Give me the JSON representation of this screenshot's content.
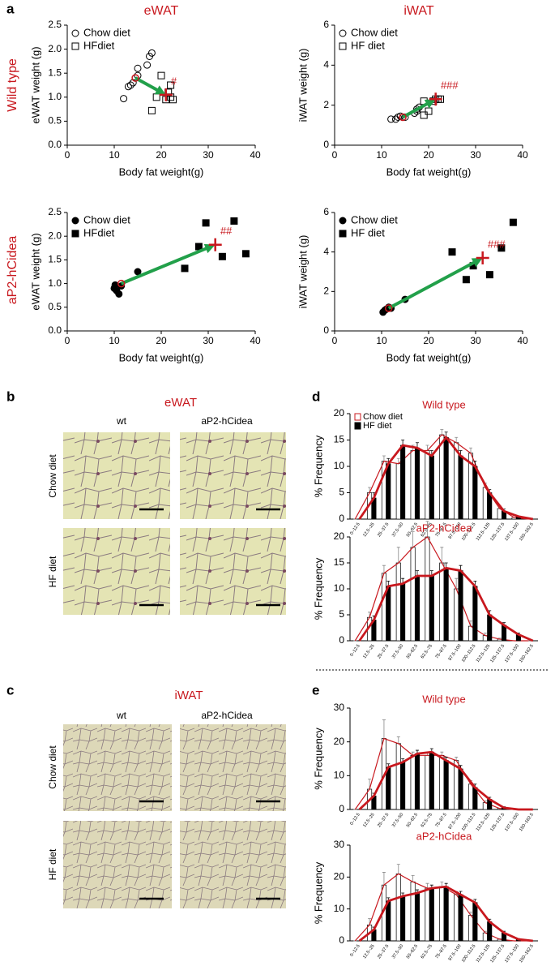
{
  "figure": {
    "panels": [
      "a",
      "b",
      "c",
      "d",
      "e"
    ],
    "row_labels": [
      "Wild type",
      "aP2-hCidea"
    ],
    "b": {
      "title": "eWAT",
      "columns": [
        "wt",
        "aP2-hCidea"
      ],
      "rows": [
        "Chow diet",
        "HF diet"
      ]
    },
    "c": {
      "title": "iWAT",
      "columns": [
        "wt",
        "aP2-hCidea"
      ],
      "rows": [
        "Chow diet",
        "HF diet"
      ]
    }
  },
  "chart_data": [
    {
      "type": "scatter",
      "title": "eWAT",
      "xlabel": "Body fat weight(g)",
      "ylabel": "eWAT weight (g)",
      "xlim": [
        0,
        40
      ],
      "xticks": [
        0,
        10,
        20,
        30,
        40
      ],
      "ylim": [
        0,
        2.5
      ],
      "yticks": [
        {
          "value": 0,
          "label": "0.0"
        },
        {
          "value": 0.5,
          "label": "0.5"
        },
        {
          "value": 1,
          "label": "1.0"
        },
        {
          "value": 1.5,
          "label": "1.5"
        },
        {
          "value": 2,
          "label": "2.0"
        },
        {
          "value": 2.5,
          "label": "2.5"
        }
      ],
      "series": [
        {
          "name": "Chow diet",
          "marker": "circle",
          "filled": false,
          "color": "#000000",
          "x": [
            12,
            13,
            13.5,
            14,
            15,
            15,
            17,
            17.5,
            18
          ],
          "y": [
            0.97,
            1.22,
            1.25,
            1.3,
            1.45,
            1.6,
            1.67,
            1.85,
            1.92
          ]
        },
        {
          "name": "HFdiet",
          "marker": "square",
          "filled": false,
          "color": "#000000",
          "x": [
            18,
            19,
            20,
            21,
            22,
            22,
            22.5,
            21.5
          ],
          "y": [
            0.72,
            1.0,
            1.45,
            0.95,
            1.25,
            1.0,
            0.95,
            1.1
          ]
        }
      ],
      "means": {
        "color": "#c8181e",
        "x": [
          14.5,
          21
        ],
        "y": [
          1.4,
          1.05
        ]
      },
      "arrow_color": "#22a04a",
      "annotation": "#"
    },
    {
      "type": "scatter",
      "title": "iWAT",
      "xlabel": "Body fat weight(g)",
      "ylabel": "iWAT weight (g)",
      "xlim": [
        0,
        40
      ],
      "xticks": [
        0,
        10,
        20,
        30,
        40
      ],
      "ylim": [
        0,
        6
      ],
      "yticks": [
        0,
        2,
        4,
        6
      ],
      "series": [
        {
          "name": "Chow diet",
          "marker": "circle",
          "filled": false,
          "color": "#000000",
          "x": [
            12,
            13,
            13.5,
            14,
            15,
            17,
            17.5,
            18,
            17.5
          ],
          "y": [
            1.3,
            1.3,
            1.4,
            1.45,
            1.4,
            1.6,
            1.8,
            1.9,
            1.7
          ]
        },
        {
          "name": "HF diet",
          "marker": "square",
          "filled": false,
          "color": "#000000",
          "x": [
            19,
            20,
            19,
            21,
            21.5,
            22,
            22.5
          ],
          "y": [
            1.5,
            1.7,
            2.2,
            2.2,
            2.3,
            2.3,
            2.3
          ]
        }
      ],
      "means": {
        "color": "#c8181e",
        "x": [
          14.5,
          21.5
        ],
        "y": [
          1.4,
          2.3
        ]
      },
      "arrow_color": "#22a04a",
      "annotation": "###"
    },
    {
      "type": "scatter",
      "title": null,
      "xlabel": "Body fat weight(g)",
      "ylabel": "eWAT weight (g)",
      "xlim": [
        0,
        40
      ],
      "xticks": [
        0,
        10,
        20,
        30,
        40
      ],
      "ylim": [
        0,
        2.5
      ],
      "yticks": [
        {
          "value": 0,
          "label": "0.0"
        },
        {
          "value": 0.5,
          "label": "0.5"
        },
        {
          "value": 1,
          "label": "1.0"
        },
        {
          "value": 1.5,
          "label": "1.5"
        },
        {
          "value": 2,
          "label": "2.0"
        },
        {
          "value": 2.5,
          "label": "2.5"
        }
      ],
      "series": [
        {
          "name": "Chow diet",
          "marker": "circle",
          "filled": true,
          "color": "#000000",
          "x": [
            10,
            10.2,
            10.5,
            11,
            11.5,
            15
          ],
          "y": [
            0.9,
            0.97,
            0.85,
            0.78,
            0.95,
            1.25
          ]
        },
        {
          "name": "HFdiet",
          "marker": "square",
          "filled": true,
          "color": "#000000",
          "x": [
            25,
            28,
            29.5,
            33,
            35.5,
            38
          ],
          "y": [
            1.32,
            1.78,
            2.28,
            1.57,
            2.32,
            1.63
          ]
        }
      ],
      "means": {
        "color": "#c8181e",
        "x": [
          11.5,
          31.5
        ],
        "y": [
          1.0,
          1.82
        ]
      },
      "arrow_color": "#22a04a",
      "annotation": "##"
    },
    {
      "type": "scatter",
      "title": null,
      "xlabel": "Body fat weight(g)",
      "ylabel": "iWAT weight (g)",
      "xlim": [
        0,
        40
      ],
      "xticks": [
        0,
        10,
        20,
        30,
        40
      ],
      "ylim": [
        0,
        6
      ],
      "yticks": [
        0,
        2,
        4,
        6
      ],
      "series": [
        {
          "name": "Chow diet",
          "marker": "circle",
          "filled": true,
          "color": "#000000",
          "x": [
            10.3,
            10.7,
            11,
            11.5,
            12,
            15
          ],
          "y": [
            0.95,
            1.05,
            1.1,
            1.2,
            1.15,
            1.6
          ]
        },
        {
          "name": "HF diet",
          "marker": "square",
          "filled": true,
          "color": "#000000",
          "x": [
            25,
            28,
            29.5,
            33,
            35.5,
            38
          ],
          "y": [
            4.0,
            2.6,
            3.3,
            2.85,
            4.2,
            5.5
          ]
        }
      ],
      "means": {
        "color": "#c8181e",
        "x": [
          11.5,
          31.5
        ],
        "y": [
          1.15,
          3.7
        ]
      },
      "arrow_color": "#22a04a",
      "annotation": "###"
    },
    {
      "type": "bar",
      "title": "Wild type",
      "ylabel": "% Frequency",
      "legend": "upper left",
      "categories": [
        "0–12.5",
        "12.5–25",
        "25–37.5",
        "37.5–50",
        "50–62.5",
        "62.5–75",
        "75–87.5",
        "87.5–100",
        "100–112.5",
        "112.5–125",
        "125–137.5",
        "137.5–150",
        "150–162.5"
      ],
      "ylim": [
        0,
        20
      ],
      "yticks": [
        0,
        5,
        10,
        15,
        20
      ],
      "line_color": "#c8181e",
      "series": [
        {
          "name": "Chow diet",
          "color": "#ffffff",
          "values": [
            0,
            5,
            11,
            10.5,
            13,
            13,
            16,
            14.5,
            12.5,
            6,
            2,
            0.3,
            0
          ],
          "errors": [
            0,
            1,
            1,
            1,
            1,
            1,
            1,
            1,
            1,
            0.8,
            0.5,
            0,
            0
          ]
        },
        {
          "name": "HF diet",
          "color": "#000000",
          "values": [
            0,
            4,
            10.5,
            14,
            13.5,
            12,
            15.5,
            12,
            10,
            5,
            1.5,
            0.5,
            0
          ],
          "errors": [
            0,
            1,
            1,
            1,
            1,
            1,
            1,
            1,
            1,
            0.6,
            0.4,
            0,
            0
          ]
        }
      ]
    },
    {
      "type": "bar",
      "title": "aP2-hCidea",
      "ylabel": "% Frequency",
      "categories": [
        "0–12.5",
        "12.5–25",
        "25–37.5",
        "37.5–50",
        "50–62.5",
        "62.5–75",
        "75–87.5",
        "87.5–100",
        "100–112.5",
        "112.5–125",
        "125–137.5",
        "137.5–150",
        "150–162.5"
      ],
      "ylim": [
        0,
        20
      ],
      "yticks": [
        0,
        5,
        10,
        15,
        20
      ],
      "line_color": "#c8181e",
      "series": [
        {
          "color": "#ffffff",
          "values": [
            0,
            4.5,
            13,
            15,
            18,
            20,
            15,
            10,
            2.8,
            1,
            0.3,
            0,
            0
          ],
          "errors": [
            0,
            1,
            1.5,
            3,
            3,
            3,
            3,
            2,
            1,
            0.5,
            0.2,
            0,
            0
          ]
        },
        {
          "color": "#000000",
          "values": [
            0,
            4,
            10.5,
            11,
            12.5,
            12.5,
            14,
            13.5,
            10.5,
            5,
            3,
            1.2,
            0
          ],
          "errors": [
            0,
            0.8,
            1,
            1,
            1,
            1,
            1,
            1,
            1,
            0.8,
            0.5,
            0.3,
            0
          ]
        }
      ]
    },
    {
      "type": "bar",
      "title": "Wild type",
      "ylabel": "% Frequency",
      "categories": [
        "0–12.5",
        "12.5–25",
        "25–37.5",
        "37.5–50",
        "50–62.5",
        "62.5–75",
        "75–87.5",
        "87.5–100",
        "100–112.5",
        "112.5–125",
        "125–137.5",
        "137.5–150",
        "150–162.5"
      ],
      "ylim": [
        0,
        30
      ],
      "yticks": [
        0,
        10,
        20,
        30
      ],
      "line_color": "#c8181e",
      "series": [
        {
          "color": "#ffffff",
          "values": [
            0,
            6,
            21,
            19.5,
            16,
            16,
            16,
            14.5,
            7.5,
            2,
            0.3,
            0,
            0
          ],
          "errors": [
            0,
            3,
            5.5,
            2,
            1,
            1,
            1,
            1,
            1,
            0.5,
            0,
            0,
            0
          ]
        },
        {
          "color": "#000000",
          "values": [
            0,
            4,
            12.5,
            14,
            16.5,
            17,
            14.5,
            12,
            6.5,
            3,
            0.5,
            0,
            0
          ],
          "errors": [
            0,
            0.8,
            1,
            1,
            1,
            1,
            1,
            1,
            1,
            0.6,
            0.3,
            0,
            0
          ]
        }
      ]
    },
    {
      "type": "bar",
      "title": "aP2-hCidea",
      "ylabel": "% Frequency",
      "categories": [
        "0–12.5",
        "12.5–25",
        "25–37.5",
        "37.5–50",
        "50–62.5",
        "62.5–75",
        "75–87.5",
        "87.5–100",
        "100–112.5",
        "112.5–125",
        "125–137.5",
        "137.5–150",
        "150–162.5"
      ],
      "ylim": [
        0,
        30
      ],
      "yticks": [
        0,
        10,
        20,
        30
      ],
      "line_color": "#c8181e",
      "series": [
        {
          "color": "#ffffff",
          "values": [
            0,
            5,
            17.5,
            21,
            18.5,
            16.5,
            17,
            14.5,
            8,
            2.5,
            0.5,
            0,
            0
          ],
          "errors": [
            0,
            2,
            4,
            3,
            2,
            1.5,
            1.5,
            1,
            1,
            0.5,
            0.2,
            0,
            0
          ]
        },
        {
          "color": "#000000",
          "values": [
            0,
            3.5,
            12.5,
            14,
            15,
            16.5,
            17,
            14.5,
            12,
            6,
            2.5,
            0.5,
            0
          ],
          "errors": [
            0,
            0.8,
            1,
            1,
            1,
            1,
            1,
            1,
            1,
            0.8,
            0.5,
            0.2,
            0
          ]
        }
      ]
    }
  ]
}
